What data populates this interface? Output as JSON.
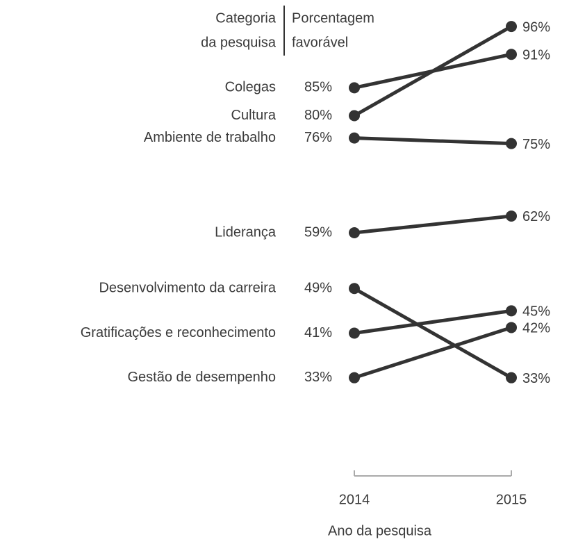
{
  "chart_data": {
    "type": "slope",
    "category_header": [
      "Categoria",
      "da pesquisa"
    ],
    "value_header": [
      "Porcentagem",
      "favorável"
    ],
    "x": [
      2014,
      2015
    ],
    "xlim": [
      2014,
      2015
    ],
    "xticks": [
      2014,
      2015
    ],
    "x_label": "Ano da pesquisa",
    "ylim": [
      20,
      100
    ],
    "color": "#333333",
    "series": [
      {
        "name": "Colegas",
        "values": [
          85,
          91
        ],
        "value_labels": [
          "85%",
          "91%"
        ]
      },
      {
        "name": "Cultura",
        "values": [
          80,
          96
        ],
        "value_labels": [
          "80%",
          "96%"
        ]
      },
      {
        "name": "Ambiente de trabalho",
        "values": [
          76,
          75
        ],
        "value_labels": [
          "76%",
          "75%"
        ]
      },
      {
        "name": "Liderança",
        "values": [
          59,
          62
        ],
        "value_labels": [
          "59%",
          "62%"
        ]
      },
      {
        "name": "Desenvolvimento da carreira",
        "values": [
          49,
          33
        ],
        "value_labels": [
          "49%",
          "33%"
        ]
      },
      {
        "name": "Gratificações e reconhecimento",
        "values": [
          41,
          45
        ],
        "value_labels": [
          "41%",
          "45%"
        ]
      },
      {
        "name": "Gestão de desempenho",
        "values": [
          33,
          42
        ],
        "value_labels": [
          "33%",
          "42%"
        ]
      }
    ]
  }
}
